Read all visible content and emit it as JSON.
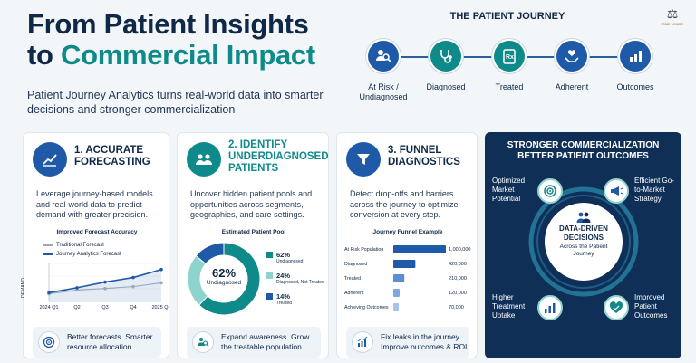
{
  "header": {
    "title_line1": "From Patient Insights",
    "title_line2_pre": "to ",
    "title_line2_accent": "Commercial Impact",
    "subtitle": "Patient Journey Analytics turns real-world data into smarter decisions and stronger commercialization"
  },
  "logo": {
    "text": "TIME LEADS",
    "icon": "scales-icon"
  },
  "journey": {
    "title": "THE PATIENT JOURNEY",
    "stages": [
      {
        "label": "At Risk / Undiagnosed",
        "icon": "person-search-icon",
        "color": "#1e5aa8"
      },
      {
        "label": "Diagnosed",
        "icon": "stethoscope-icon",
        "color": "#0f8a8a"
      },
      {
        "label": "Treated",
        "icon": "prescription-icon",
        "color": "#0f8a8a"
      },
      {
        "label": "Adherent",
        "icon": "hands-heart-icon",
        "color": "#1e5aa8"
      },
      {
        "label": "Outcomes",
        "icon": "bar-chart-icon",
        "color": "#1e5aa8"
      }
    ]
  },
  "cards": [
    {
      "title": "1. ACCURATE FORECASTING",
      "body": "Leverage journey-based models and real-world data to predict demand with greater precision.",
      "chart_title": "Improved Forecast Accuracy",
      "legend": [
        "Traditional Forecast",
        "Journey Analytics Forecast"
      ],
      "ylabel": "DEMAND",
      "xticks": [
        "2024 Q1",
        "Q2",
        "Q3",
        "Q4",
        "2025 Q1"
      ],
      "footer": "Better forecasts. Smarter resource allocation.",
      "accent": "#1e5aa8"
    },
    {
      "title": "2. IDENTIFY UNDERDIAGNOSED PATIENTS",
      "body": "Uncover hidden patient pools and opportunities across segments, geographies, and care settings.",
      "chart_title": "Estimated Patient Pool",
      "center_value": "62%",
      "center_label": "Undiagnosed",
      "legend": [
        {
          "value": "62%",
          "label": "Undiagnosed"
        },
        {
          "value": "24%",
          "label": "Diagnosed, Not Treated"
        },
        {
          "value": "14%",
          "label": "Treated"
        }
      ],
      "footer": "Expand awareness. Grow the treatable population.",
      "accent": "#0f8a8a"
    },
    {
      "title": "3. FUNNEL DIAGNOSTICS",
      "body": "Detect drop-offs and barriers across the journey to optimize conversion at every step.",
      "chart_title": "Journey Funnel Example",
      "footer": "Fix leaks in the journey. Improve outcomes & ROI.",
      "accent": "#1e5aa8"
    }
  ],
  "dark_panel": {
    "title_line1": "STRONGER COMMERCIALIZATION",
    "title_line2": "BETTER PATIENT OUTCOMES",
    "center_title": "DATA-DRIVEN DECISIONS",
    "center_sub": "Across the Patient Journey",
    "items": [
      {
        "label": "Optimized Market Potential",
        "icon": "target-icon"
      },
      {
        "label": "Efficient Go-to-Market Strategy",
        "icon": "megaphone-icon"
      },
      {
        "label": "Higher Treatment Uptake",
        "icon": "growth-chart-icon"
      },
      {
        "label": "Improved Patient Outcomes",
        "icon": "heart-check-icon"
      }
    ]
  },
  "chart_data": [
    {
      "type": "line",
      "title": "Improved Forecast Accuracy",
      "ylabel": "DEMAND",
      "categories": [
        "2024 Q1",
        "Q2",
        "Q3",
        "Q4",
        "2025 Q1"
      ],
      "series": [
        {
          "name": "Traditional Forecast",
          "color": "#9aa8b8",
          "values": [
            2,
            3,
            3.4,
            3.9,
            4.9
          ]
        },
        {
          "name": "Journey Analytics Forecast",
          "color": "#1e5aa8",
          "values": [
            2.3,
            3.6,
            5.1,
            6.3,
            8.4
          ]
        }
      ],
      "ylim": [
        0,
        10
      ]
    },
    {
      "type": "pie",
      "title": "Estimated Patient Pool",
      "series": [
        {
          "name": "Undiagnosed",
          "value": 62,
          "color": "#0f8a8a"
        },
        {
          "name": "Diagnosed, Not Treated",
          "value": 24,
          "color": "#8fd3cf"
        },
        {
          "name": "Treated",
          "value": 14,
          "color": "#1e5aa8"
        }
      ]
    },
    {
      "type": "bar",
      "title": "Journey Funnel Example",
      "categories": [
        "At Risk Population",
        "Diagnosed",
        "Treated",
        "Adherent",
        "Achieving Outcomes"
      ],
      "values": [
        1000000,
        420000,
        210000,
        120000,
        70000
      ],
      "labels": [
        "1,000,000",
        "420,000",
        "210,000",
        "120,000",
        "70,000"
      ],
      "colors": [
        "#1e5aa8",
        "#1e5aa8",
        "#5a8fd0",
        "#7ea7dc",
        "#a7c3e8"
      ]
    }
  ]
}
